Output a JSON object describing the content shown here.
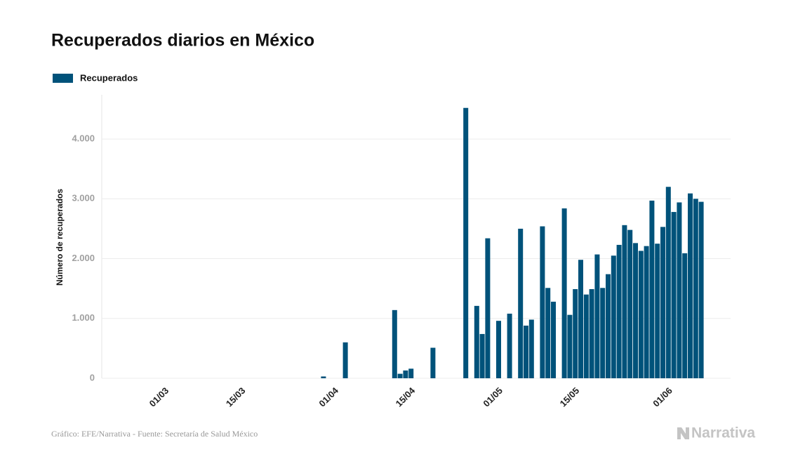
{
  "chart_data": {
    "type": "bar",
    "title": "Recuperados diarios en México",
    "y_label": "Número de recuperados",
    "series": [
      {
        "name": "Recuperados",
        "color": "#00527a",
        "values": [
          0,
          0,
          0,
          0,
          0,
          0,
          0,
          0,
          0,
          0,
          0,
          0,
          0,
          0,
          0,
          0,
          0,
          0,
          0,
          0,
          0,
          0,
          0,
          0,
          0,
          0,
          0,
          0,
          0,
          0,
          0,
          0,
          0,
          0,
          0,
          30,
          0,
          0,
          0,
          600,
          0,
          0,
          0,
          0,
          0,
          0,
          0,
          0,
          1140,
          75,
          130,
          160,
          0,
          0,
          0,
          510,
          0,
          0,
          0,
          0,
          0,
          4520,
          0,
          1210,
          740,
          2340,
          0,
          960,
          0,
          1080,
          0,
          2500,
          880,
          980,
          0,
          2540,
          1510,
          1280,
          0,
          2840,
          1060,
          1490,
          1980,
          1400,
          1490,
          2070,
          1510,
          1740,
          2050,
          2230,
          2560,
          2480,
          2260,
          2130,
          2210,
          2970,
          2250,
          2530,
          3200,
          2780,
          2940,
          2090,
          3090,
          3000,
          2950
        ]
      }
    ],
    "categories": [
      null,
      null,
      null,
      null,
      null,
      null,
      "01/03",
      null,
      null,
      null,
      null,
      null,
      null,
      null,
      null,
      null,
      null,
      null,
      null,
      null,
      "15/03",
      null,
      null,
      null,
      null,
      null,
      null,
      null,
      null,
      null,
      null,
      null,
      null,
      null,
      null,
      null,
      null,
      "01/04",
      null,
      null,
      null,
      null,
      null,
      null,
      null,
      null,
      null,
      null,
      null,
      null,
      null,
      "15/04",
      null,
      null,
      null,
      null,
      null,
      null,
      null,
      null,
      null,
      null,
      null,
      null,
      null,
      null,
      null,
      "01/05",
      null,
      null,
      null,
      null,
      null,
      null,
      null,
      null,
      null,
      null,
      null,
      null,
      null,
      "15/05",
      null,
      null,
      null,
      null,
      null,
      null,
      null,
      null,
      null,
      null,
      null,
      null,
      null,
      null,
      null,
      null,
      "01/06",
      null,
      null,
      null,
      null,
      null,
      null
    ],
    "ylim": [
      0,
      4740
    ],
    "yticks": [
      0,
      {
        "value": 1000,
        "label": "1.000"
      },
      {
        "value": 2000,
        "label": "2.000"
      },
      {
        "value": 3000,
        "label": "3.000"
      },
      {
        "value": 4000,
        "label": "4.000"
      }
    ],
    "grid": true,
    "legend": "top-left",
    "source": "Gráfico: EFE/Narrativa - Fuente: Secretaría de Salud México",
    "logo": "Narrativa"
  }
}
